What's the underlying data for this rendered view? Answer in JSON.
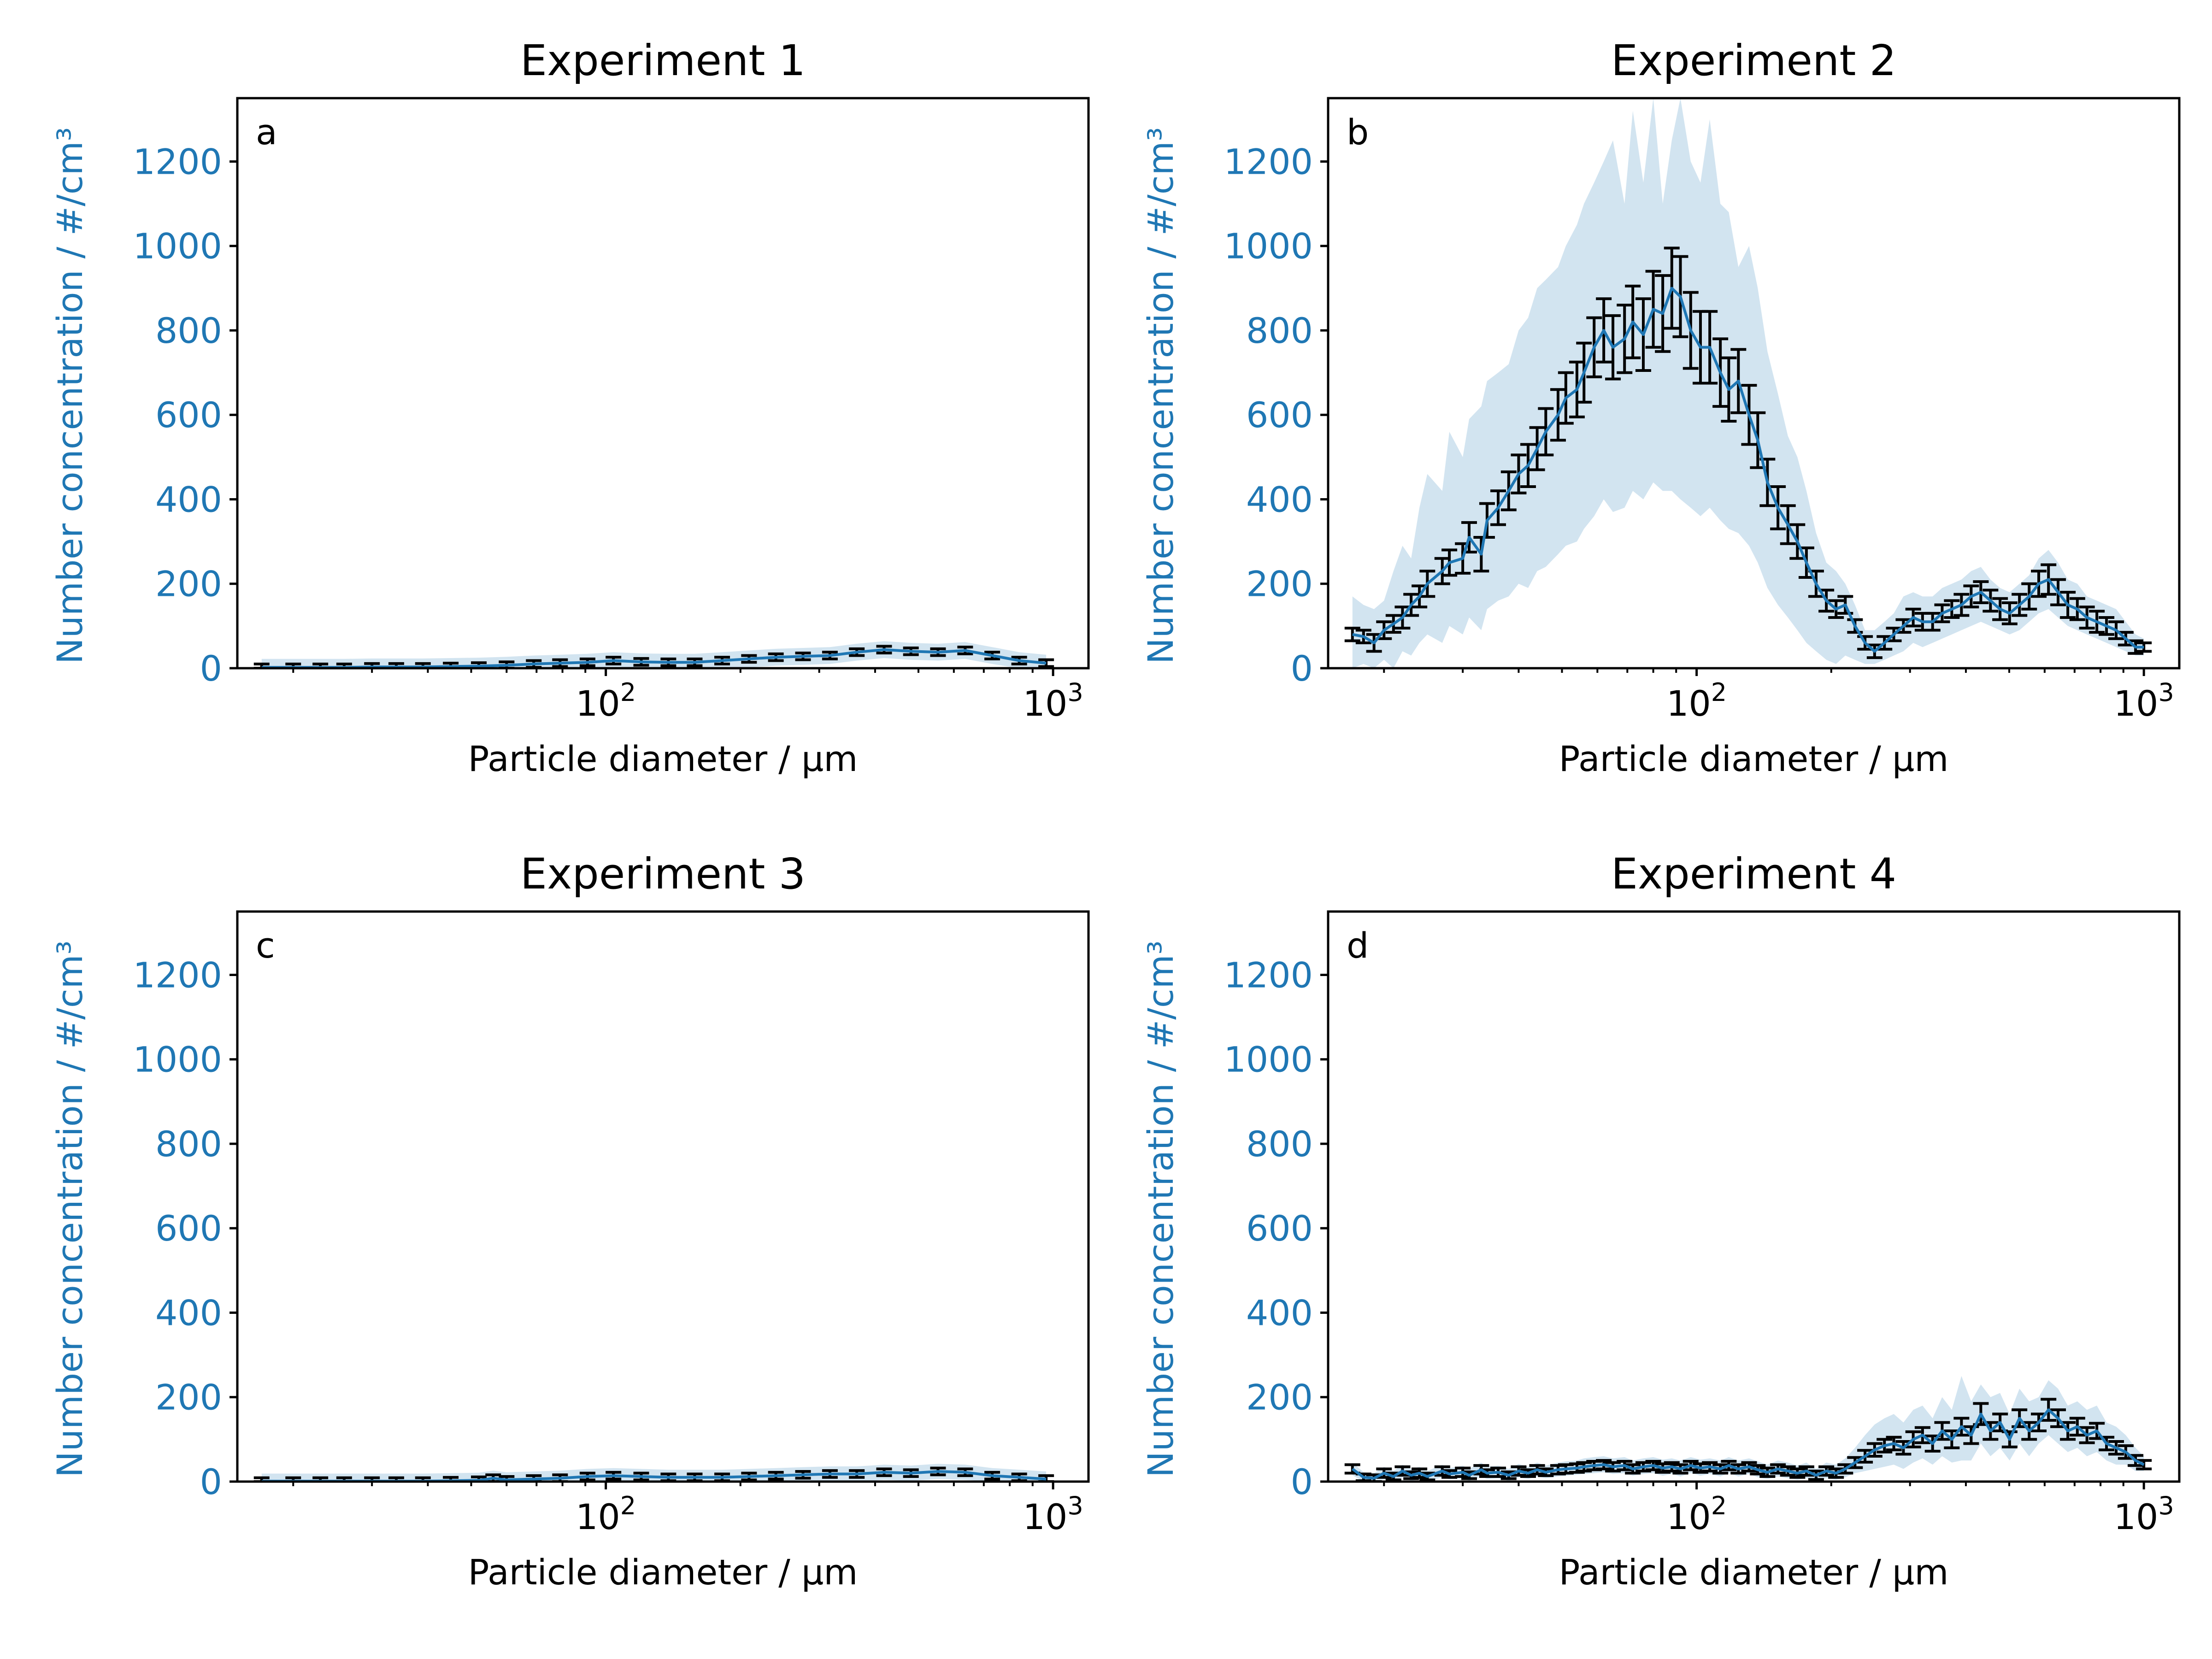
{
  "colors": {
    "series": "#1f77b4",
    "band": "#1f77b4",
    "errorbar": "#000000",
    "axis": "#000000",
    "ylabel": "#1f77b4"
  },
  "chart_data": [
    {
      "type": "line",
      "title": "Experiment 1",
      "panel_label": "a",
      "xlabel": "Particle diameter / μm",
      "ylabel": "Number concentration / #/cm³",
      "xscale": "log",
      "xlim": [
        15,
        1200
      ],
      "ylim": [
        0,
        1350
      ],
      "xticks": [
        100,
        1000
      ],
      "xtick_labels": [
        {
          "base": "10",
          "exp": "2"
        },
        {
          "base": "10",
          "exp": "3"
        }
      ],
      "yticks": [
        0,
        200,
        400,
        600,
        800,
        1000,
        1200
      ],
      "ytick_labels": [
        "0",
        "200",
        "400",
        "600",
        "800",
        "1000",
        "1200"
      ],
      "band_halfwidth": 20,
      "errorbar_halfwidth": 8,
      "x": [
        17,
        20,
        23,
        26,
        30,
        34,
        39,
        45,
        52,
        60,
        69,
        79,
        91,
        104,
        120,
        138,
        158,
        182,
        209,
        240,
        276,
        317,
        364,
        419,
        481,
        553,
        636,
        731,
        840,
        965
      ],
      "y": [
        2,
        2,
        2,
        2,
        3,
        3,
        3,
        4,
        5,
        7,
        10,
        12,
        14,
        18,
        15,
        14,
        14,
        18,
        22,
        26,
        28,
        30,
        38,
        44,
        40,
        38,
        42,
        30,
        18,
        12
      ]
    },
    {
      "type": "line",
      "title": "Experiment 2",
      "panel_label": "b",
      "xlabel": "Particle diameter / μm",
      "ylabel": "Number concentration / #/cm³",
      "xscale": "log",
      "xlim": [
        15,
        1200
      ],
      "ylim": [
        0,
        1350
      ],
      "xticks": [
        100,
        1000
      ],
      "xtick_labels": [
        {
          "base": "10",
          "exp": "2"
        },
        {
          "base": "10",
          "exp": "3"
        }
      ],
      "yticks": [
        0,
        200,
        400,
        600,
        800,
        1000,
        1200
      ],
      "ytick_labels": [
        "0",
        "200",
        "400",
        "600",
        "800",
        "1000",
        "1200"
      ],
      "band_halfwidth": 0,
      "x": [
        17,
        18,
        19,
        20,
        21,
        22,
        23,
        24,
        25,
        27,
        28,
        30,
        31,
        33,
        34,
        36,
        38,
        40,
        42,
        44,
        46,
        49,
        51,
        54,
        56,
        59,
        62,
        65,
        69,
        72,
        76,
        80,
        84,
        88,
        92,
        97,
        102,
        107,
        113,
        118,
        124,
        131,
        137,
        144,
        152,
        160,
        168,
        176,
        185,
        195,
        205,
        215,
        226,
        238,
        250,
        263,
        276,
        290,
        305,
        320,
        337,
        354,
        372,
        391,
        411,
        432,
        454,
        477,
        501,
        527,
        554,
        582,
        612,
        643,
        676,
        710,
        746,
        785,
        825,
        867,
        911,
        958,
        1000
      ],
      "y": [
        80,
        75,
        60,
        90,
        105,
        120,
        150,
        170,
        200,
        230,
        250,
        260,
        310,
        270,
        350,
        380,
        420,
        460,
        480,
        520,
        560,
        600,
        640,
        660,
        700,
        760,
        800,
        760,
        780,
        820,
        790,
        850,
        840,
        900,
        880,
        800,
        760,
        760,
        700,
        660,
        680,
        600,
        540,
        440,
        380,
        340,
        300,
        250,
        200,
        160,
        140,
        150,
        100,
        60,
        40,
        60,
        80,
        100,
        120,
        110,
        110,
        130,
        140,
        150,
        170,
        180,
        160,
        140,
        130,
        150,
        170,
        200,
        210,
        180,
        150,
        140,
        120,
        110,
        100,
        90,
        70,
        50,
        50
      ],
      "err": [
        15,
        15,
        20,
        20,
        20,
        25,
        25,
        25,
        30,
        30,
        30,
        35,
        35,
        40,
        40,
        40,
        45,
        45,
        50,
        50,
        55,
        60,
        60,
        65,
        70,
        70,
        75,
        75,
        80,
        85,
        85,
        90,
        90,
        95,
        95,
        90,
        85,
        85,
        80,
        75,
        75,
        70,
        65,
        55,
        50,
        45,
        40,
        35,
        30,
        25,
        20,
        20,
        15,
        15,
        15,
        15,
        15,
        15,
        20,
        20,
        20,
        20,
        20,
        25,
        25,
        25,
        25,
        25,
        25,
        25,
        30,
        30,
        35,
        30,
        30,
        25,
        25,
        25,
        20,
        20,
        15,
        15,
        10
      ],
      "band_upper": [
        170,
        150,
        140,
        160,
        230,
        290,
        260,
        380,
        460,
        420,
        560,
        500,
        590,
        620,
        680,
        700,
        720,
        800,
        830,
        900,
        920,
        950,
        1000,
        1050,
        1100,
        1150,
        1200,
        1250,
        1100,
        1320,
        1150,
        1350,
        1100,
        1250,
        1350,
        1200,
        1150,
        1300,
        1100,
        1080,
        950,
        1000,
        900,
        750,
        650,
        550,
        500,
        420,
        320,
        250,
        230,
        200,
        150,
        90,
        90,
        110,
        130,
        170,
        180,
        170,
        170,
        190,
        200,
        210,
        230,
        240,
        210,
        190,
        180,
        200,
        220,
        260,
        280,
        250,
        210,
        200,
        170,
        160,
        150,
        140,
        110,
        80,
        70
      ],
      "band_lower": [
        0,
        10,
        0,
        20,
        0,
        40,
        30,
        60,
        80,
        60,
        100,
        80,
        120,
        90,
        140,
        160,
        170,
        200,
        190,
        230,
        240,
        270,
        290,
        300,
        330,
        360,
        400,
        370,
        380,
        420,
        400,
        440,
        420,
        420,
        400,
        380,
        360,
        380,
        350,
        330,
        320,
        290,
        250,
        190,
        150,
        120,
        90,
        60,
        40,
        20,
        10,
        30,
        20,
        10,
        10,
        20,
        30,
        40,
        60,
        50,
        60,
        70,
        80,
        90,
        100,
        110,
        100,
        90,
        80,
        90,
        110,
        130,
        140,
        120,
        100,
        90,
        80,
        70,
        60,
        50,
        40,
        30,
        30
      ]
    },
    {
      "type": "line",
      "title": "Experiment 3",
      "panel_label": "c",
      "xlabel": "Particle diameter / μm",
      "ylabel": "Number concentration / #/cm³",
      "xscale": "log",
      "xlim": [
        15,
        1200
      ],
      "ylim": [
        0,
        1350
      ],
      "xticks": [
        100,
        1000
      ],
      "xtick_labels": [
        {
          "base": "10",
          "exp": "2"
        },
        {
          "base": "10",
          "exp": "3"
        }
      ],
      "yticks": [
        0,
        200,
        400,
        600,
        800,
        1000,
        1200
      ],
      "ytick_labels": [
        "0",
        "200",
        "400",
        "600",
        "800",
        "1000",
        "1200"
      ],
      "band_halfwidth": 18,
      "errorbar_halfwidth": 8,
      "x": [
        17,
        20,
        23,
        26,
        30,
        34,
        39,
        45,
        52,
        56,
        60,
        69,
        79,
        91,
        104,
        120,
        138,
        158,
        182,
        209,
        240,
        276,
        317,
        364,
        419,
        481,
        553,
        636,
        731,
        840,
        965
      ],
      "y": [
        1,
        1,
        1,
        1,
        1,
        1,
        1,
        2,
        3,
        8,
        4,
        6,
        8,
        12,
        14,
        12,
        10,
        10,
        10,
        12,
        14,
        16,
        18,
        18,
        22,
        20,
        24,
        22,
        14,
        10,
        6
      ]
    },
    {
      "type": "line",
      "title": "Experiment 4",
      "panel_label": "d",
      "xlabel": "Particle diameter / μm",
      "ylabel": "Number concentration / #/cm³",
      "xscale": "log",
      "xlim": [
        15,
        1200
      ],
      "ylim": [
        0,
        1350
      ],
      "xticks": [
        100,
        1000
      ],
      "xtick_labels": [
        {
          "base": "10",
          "exp": "2"
        },
        {
          "base": "10",
          "exp": "3"
        }
      ],
      "yticks": [
        0,
        200,
        400,
        600,
        800,
        1000,
        1200
      ],
      "ytick_labels": [
        "0",
        "200",
        "400",
        "600",
        "800",
        "1000",
        "1200"
      ],
      "band_halfwidth": 0,
      "x": [
        17,
        18,
        19,
        20,
        21,
        22,
        23,
        24,
        25,
        27,
        28,
        30,
        31,
        33,
        34,
        36,
        38,
        40,
        42,
        44,
        46,
        49,
        51,
        54,
        56,
        59,
        62,
        65,
        69,
        72,
        76,
        80,
        84,
        88,
        92,
        97,
        102,
        107,
        113,
        118,
        124,
        131,
        137,
        144,
        152,
        160,
        168,
        176,
        185,
        195,
        205,
        215,
        226,
        238,
        250,
        263,
        276,
        290,
        305,
        320,
        337,
        354,
        372,
        391,
        411,
        432,
        454,
        477,
        501,
        527,
        554,
        582,
        612,
        643,
        676,
        710,
        746,
        785,
        825,
        867,
        911,
        958,
        1000
      ],
      "y": [
        30,
        10,
        8,
        20,
        12,
        25,
        15,
        20,
        12,
        25,
        18,
        22,
        15,
        28,
        20,
        22,
        15,
        25,
        20,
        28,
        22,
        28,
        30,
        32,
        35,
        38,
        40,
        35,
        38,
        30,
        35,
        38,
        32,
        35,
        30,
        38,
        32,
        35,
        30,
        38,
        30,
        35,
        28,
        22,
        30,
        25,
        20,
        25,
        15,
        25,
        20,
        30,
        45,
        60,
        75,
        85,
        90,
        80,
        100,
        110,
        90,
        120,
        100,
        130,
        110,
        160,
        120,
        140,
        100,
        150,
        120,
        140,
        170,
        150,
        120,
        130,
        110,
        120,
        90,
        80,
        70,
        50,
        40
      ],
      "err": [
        10,
        8,
        8,
        10,
        8,
        10,
        8,
        10,
        8,
        10,
        8,
        10,
        8,
        10,
        8,
        10,
        8,
        10,
        8,
        10,
        8,
        10,
        10,
        10,
        10,
        10,
        10,
        10,
        10,
        10,
        10,
        10,
        10,
        10,
        10,
        10,
        10,
        10,
        10,
        10,
        10,
        10,
        10,
        10,
        10,
        10,
        10,
        10,
        10,
        10,
        10,
        10,
        12,
        14,
        15,
        15,
        15,
        15,
        18,
        18,
        18,
        20,
        20,
        20,
        20,
        25,
        20,
        20,
        18,
        20,
        20,
        20,
        25,
        20,
        20,
        20,
        18,
        18,
        15,
        15,
        15,
        12,
        10
      ],
      "band_upper": [
        45,
        22,
        20,
        35,
        25,
        40,
        30,
        35,
        25,
        40,
        32,
        38,
        30,
        45,
        35,
        38,
        30,
        42,
        35,
        45,
        38,
        45,
        48,
        50,
        55,
        58,
        60,
        55,
        58,
        50,
        55,
        58,
        52,
        55,
        50,
        58,
        52,
        55,
        50,
        58,
        50,
        55,
        48,
        40,
        50,
        45,
        38,
        45,
        30,
        45,
        40,
        55,
        80,
        110,
        135,
        150,
        160,
        140,
        170,
        180,
        150,
        200,
        170,
        250,
        190,
        230,
        200,
        210,
        160,
        220,
        190,
        200,
        240,
        220,
        180,
        190,
        170,
        180,
        140,
        130,
        110,
        80,
        60
      ],
      "band_lower": [
        15,
        0,
        0,
        5,
        0,
        10,
        2,
        5,
        0,
        10,
        5,
        8,
        2,
        12,
        6,
        8,
        2,
        10,
        6,
        12,
        8,
        12,
        14,
        16,
        18,
        20,
        22,
        18,
        20,
        14,
        18,
        20,
        14,
        18,
        12,
        20,
        14,
        18,
        12,
        20,
        12,
        18,
        10,
        6,
        12,
        8,
        4,
        8,
        2,
        8,
        4,
        10,
        20,
        25,
        30,
        35,
        40,
        30,
        45,
        55,
        40,
        60,
        45,
        50,
        50,
        90,
        60,
        80,
        50,
        90,
        60,
        90,
        110,
        90,
        70,
        80,
        60,
        70,
        50,
        40,
        40,
        25,
        25
      ]
    }
  ]
}
